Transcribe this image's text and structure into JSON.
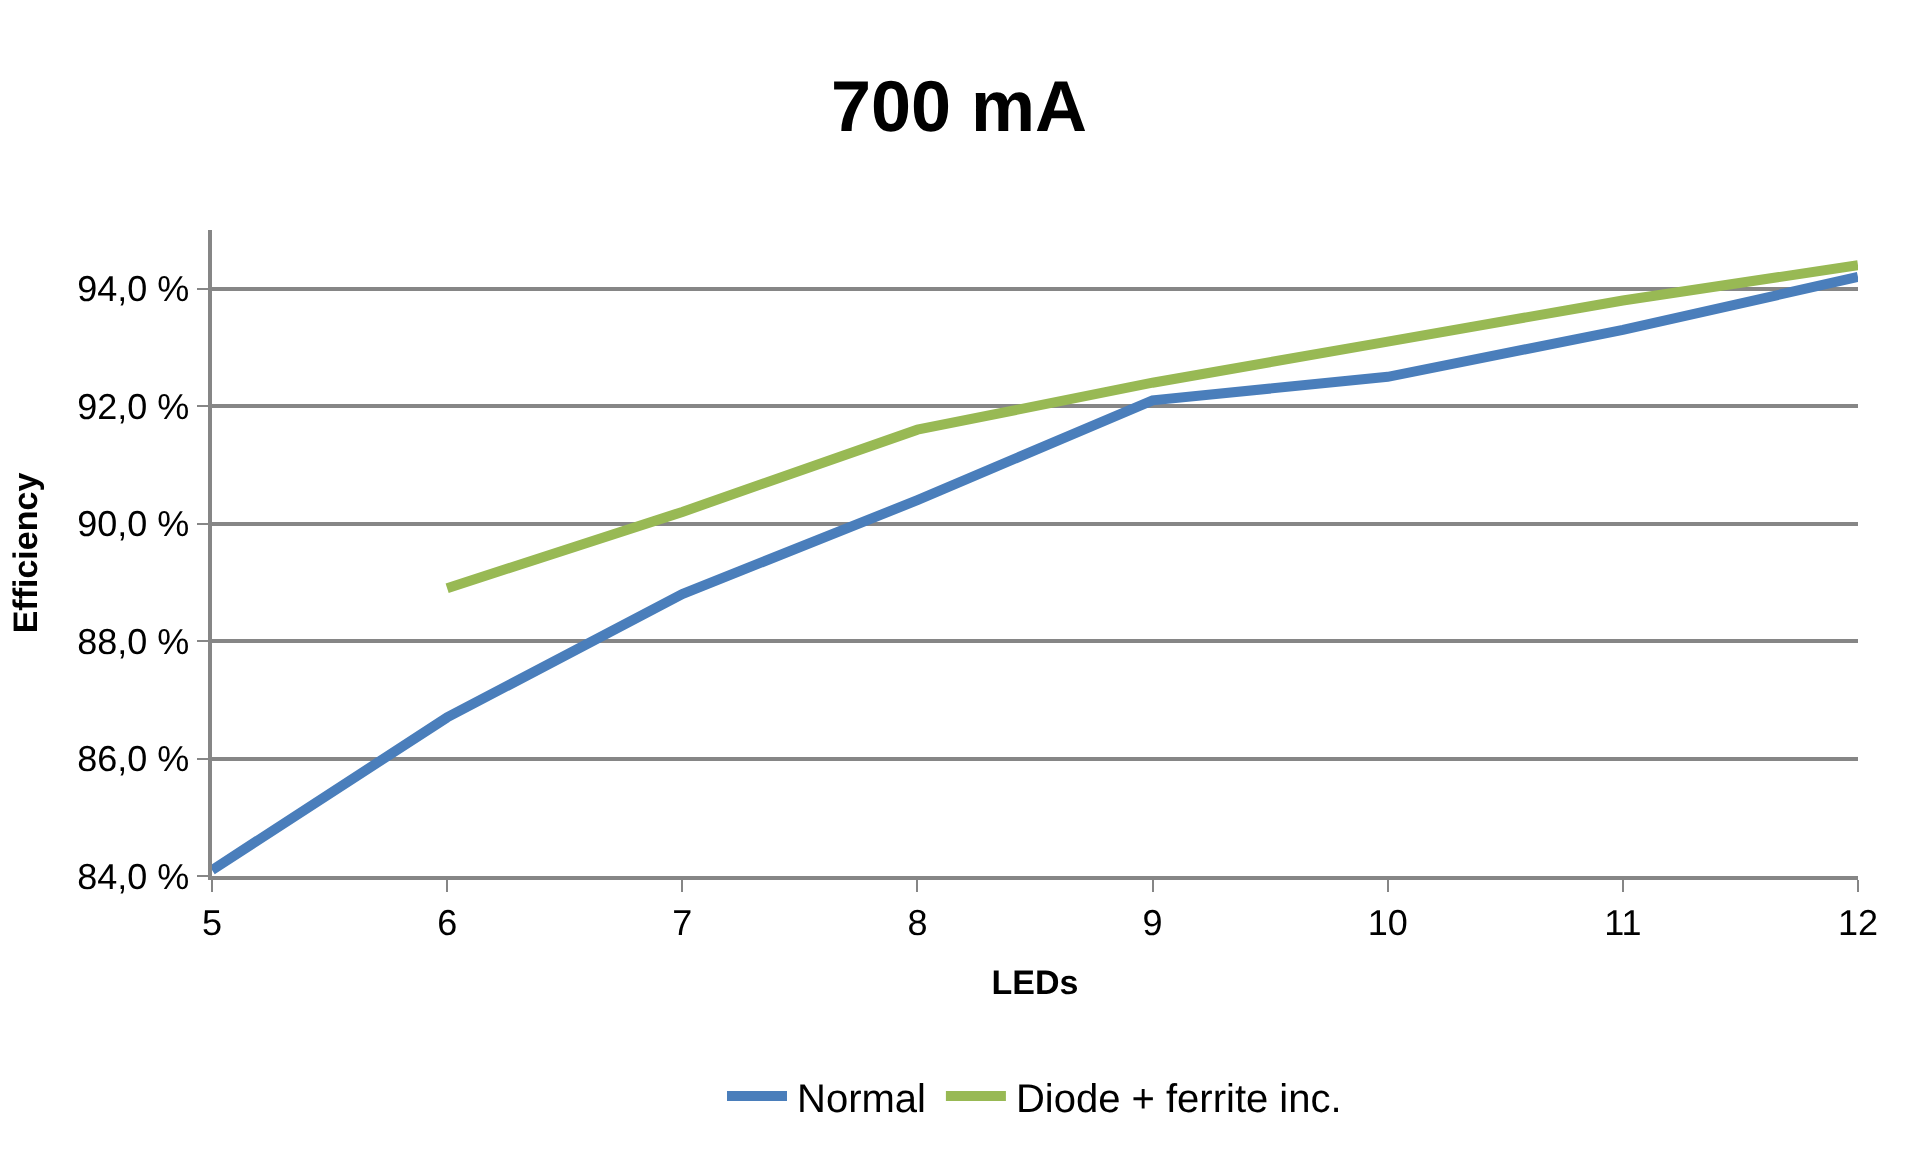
{
  "chart_data": {
    "type": "line",
    "title": "700 mA",
    "xlabel": "LEDs",
    "ylabel": "Efficiency",
    "x": [
      5,
      6,
      7,
      8,
      9,
      10,
      11,
      12
    ],
    "series": [
      {
        "name": "Normal",
        "color": "#4a7ebb",
        "values": [
          84.1,
          86.7,
          88.8,
          90.4,
          92.1,
          92.5,
          93.3,
          94.2
        ]
      },
      {
        "name": "Diode + ferrite inc.",
        "color": "#98b954",
        "values": [
          null,
          88.9,
          90.2,
          91.6,
          92.4,
          93.1,
          93.8,
          94.4
        ]
      }
    ],
    "xlim": [
      5,
      12
    ],
    "xticks": [
      5,
      6,
      7,
      8,
      9,
      10,
      11,
      12
    ],
    "ylim": [
      84,
      95
    ],
    "yticks": [
      {
        "value": 84,
        "label": "84,0 %"
      },
      {
        "value": 86,
        "label": "86,0 %"
      },
      {
        "value": 88,
        "label": "88,0 %"
      },
      {
        "value": 90,
        "label": "90,0 %"
      },
      {
        "value": 92,
        "label": "92,0 %"
      },
      {
        "value": 94,
        "label": "94,0 %"
      }
    ],
    "grid": "y",
    "legend": "bottom",
    "marker": "none",
    "line_style": "solid"
  }
}
